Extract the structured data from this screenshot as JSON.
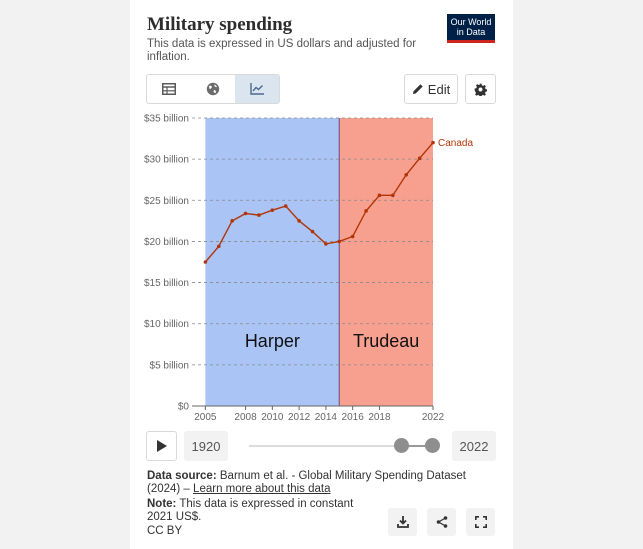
{
  "header": {
    "title": "Military spending",
    "subtitle": "This data is expressed in US dollars and adjusted for inflation.",
    "logo_line1": "Our World",
    "logo_line2": "in Data"
  },
  "toolbar": {
    "tabs": [
      {
        "icon": "table-icon"
      },
      {
        "icon": "globe-icon"
      },
      {
        "icon": "line-chart-icon",
        "active": true
      }
    ],
    "edit_label": "Edit",
    "settings_icon": "gear-icon"
  },
  "chart_data": {
    "type": "line",
    "series": [
      {
        "name": "Canada",
        "color": "#b13507",
        "x": [
          2005,
          2006,
          2007,
          2008,
          2009,
          2010,
          2011,
          2012,
          2013,
          2014,
          2015,
          2016,
          2017,
          2018,
          2019,
          2020,
          2021,
          2022
        ],
        "values": [
          17.5,
          19.4,
          22.5,
          23.4,
          23.2,
          23.8,
          24.3,
          22.5,
          21.2,
          19.7,
          20.0,
          20.6,
          23.7,
          25.6,
          25.6,
          28.1,
          30.1,
          32.0
        ]
      }
    ],
    "xlim": [
      2004,
      2022
    ],
    "ylim": [
      0,
      35
    ],
    "y_ticks": [
      0,
      5,
      10,
      15,
      20,
      25,
      30,
      35
    ],
    "y_tick_labels": [
      "$0",
      "$5 billion",
      "$10 billion",
      "$15 billion",
      "$20 billion",
      "$25 billion",
      "$30 billion",
      "$35 billion"
    ],
    "x_ticks": [
      2005,
      2008,
      2010,
      2012,
      2014,
      2016,
      2018,
      2022
    ],
    "x_tick_labels": [
      "2005",
      "2008",
      "2010",
      "2012",
      "2014",
      "2016",
      "2018",
      "2022"
    ],
    "annotations": [
      {
        "label": "Harper",
        "x_start": 2005,
        "x_end": 2015,
        "color": "#a9c4f5"
      },
      {
        "label": "Trudeau",
        "x_start": 2015,
        "x_end": 2022,
        "color": "#f8a08f"
      }
    ],
    "grid": true
  },
  "timeline": {
    "start_year": "1920",
    "end_year": "2022",
    "play_icon": "play-icon",
    "range_start_fraction": 0.835,
    "range_end_fraction": 1.0
  },
  "footer": {
    "source_label": "Data source:",
    "source_text": "Barnum et al. - Global Military Spending Dataset (2024) –",
    "source_link": "Learn more about this data",
    "note_label": "Note:",
    "note_text": "This data is expressed in constant 2021 US$.",
    "license": "CC BY",
    "icons": [
      "download-icon",
      "share-icon",
      "fullscreen-icon"
    ]
  }
}
